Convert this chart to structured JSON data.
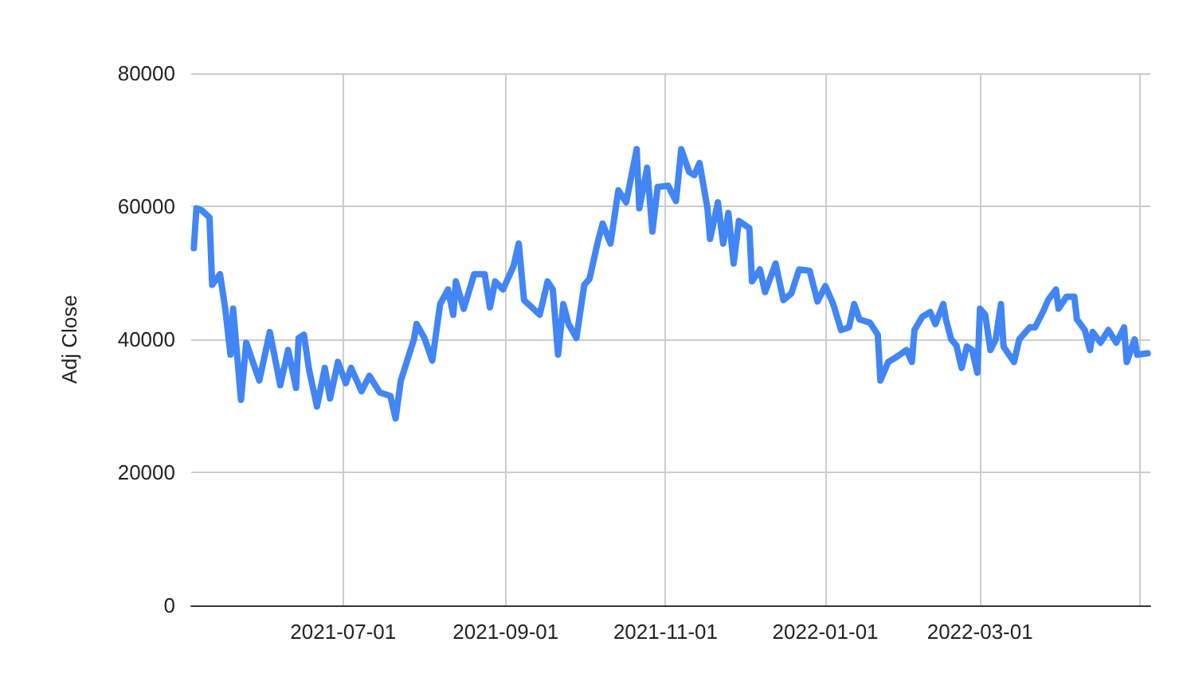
{
  "chart_data": {
    "type": "line",
    "ylabel": "Adj Close",
    "xlim": [
      "2021-05-04",
      "2022-05-05"
    ],
    "ylim": [
      0,
      80000
    ],
    "yticks": [
      0,
      20000,
      40000,
      60000,
      80000
    ],
    "xticks": [
      "2021-07-01",
      "2021-09-01",
      "2021-11-01",
      "2022-01-01",
      "2022-03-01",
      {
        "value": "2022-05-01",
        "label": null
      }
    ],
    "grid": true,
    "marker": "none",
    "line_style": "solid",
    "series": [
      {
        "color": "#4285f4",
        "x": [
          "2021-05-05",
          "2021-05-06",
          "2021-05-08",
          "2021-05-11",
          "2021-05-12",
          "2021-05-15",
          "2021-05-17",
          "2021-05-19",
          "2021-05-20",
          "2021-05-23",
          "2021-05-25",
          "2021-05-30",
          "2021-06-03",
          "2021-06-07",
          "2021-06-10",
          "2021-06-13",
          "2021-06-14",
          "2021-06-16",
          "2021-06-18",
          "2021-06-21",
          "2021-06-24",
          "2021-06-26",
          "2021-06-29",
          "2021-07-02",
          "2021-07-04",
          "2021-07-08",
          "2021-07-11",
          "2021-07-15",
          "2021-07-19",
          "2021-07-21",
          "2021-07-23",
          "2021-07-28",
          "2021-07-29",
          "2021-08-01",
          "2021-08-04",
          "2021-08-07",
          "2021-08-10",
          "2021-08-12",
          "2021-08-13",
          "2021-08-16",
          "2021-08-20",
          "2021-08-24",
          "2021-08-26",
          "2021-08-28",
          "2021-08-31",
          "2021-09-04",
          "2021-09-06",
          "2021-09-08",
          "2021-09-11",
          "2021-09-14",
          "2021-09-17",
          "2021-09-19",
          "2021-09-21",
          "2021-09-23",
          "2021-09-25",
          "2021-09-28",
          "2021-10-01",
          "2021-10-03",
          "2021-10-06",
          "2021-10-08",
          "2021-10-11",
          "2021-10-14",
          "2021-10-17",
          "2021-10-21",
          "2021-10-22",
          "2021-10-25",
          "2021-10-27",
          "2021-10-29",
          "2021-11-02",
          "2021-11-05",
          "2021-11-07",
          "2021-11-10",
          "2021-11-12",
          "2021-11-14",
          "2021-11-17",
          "2021-11-18",
          "2021-11-21",
          "2021-11-23",
          "2021-11-25",
          "2021-11-27",
          "2021-11-29",
          "2021-12-03",
          "2021-12-04",
          "2021-12-07",
          "2021-12-09",
          "2021-12-13",
          "2021-12-16",
          "2021-12-19",
          "2021-12-22",
          "2021-12-26",
          "2021-12-29",
          "2022-01-01",
          "2022-01-04",
          "2022-01-07",
          "2022-01-10",
          "2022-01-12",
          "2022-01-14",
          "2022-01-18",
          "2022-01-21",
          "2022-01-22",
          "2022-01-25",
          "2022-01-28",
          "2022-02-01",
          "2022-02-03",
          "2022-02-04",
          "2022-02-07",
          "2022-02-10",
          "2022-02-12",
          "2022-02-15",
          "2022-02-16",
          "2022-02-18",
          "2022-02-20",
          "2022-02-22",
          "2022-02-24",
          "2022-02-26",
          "2022-02-28",
          "2022-03-01",
          "2022-03-03",
          "2022-03-05",
          "2022-03-07",
          "2022-03-09",
          "2022-03-10",
          "2022-03-14",
          "2022-03-16",
          "2022-03-20",
          "2022-03-22",
          "2022-03-25",
          "2022-03-27",
          "2022-03-30",
          "2022-03-31",
          "2022-04-03",
          "2022-04-06",
          "2022-04-07",
          "2022-04-10",
          "2022-04-12",
          "2022-04-13",
          "2022-04-16",
          "2022-04-19",
          "2022-04-22",
          "2022-04-25",
          "2022-04-26",
          "2022-04-29",
          "2022-04-30",
          "2022-05-04"
        ],
        "values": [
          53700,
          59700,
          59400,
          58300,
          48200,
          49800,
          44600,
          37700,
          44600,
          30900,
          39500,
          33800,
          41100,
          33100,
          38400,
          32700,
          40200,
          40700,
          35400,
          29900,
          35700,
          31100,
          36600,
          33400,
          35700,
          32200,
          34500,
          32000,
          31500,
          28100,
          33800,
          40000,
          42300,
          40200,
          36800,
          45300,
          47500,
          43700,
          48700,
          44600,
          49800,
          49800,
          44800,
          48700,
          47500,
          51000,
          54400,
          45900,
          44800,
          43700,
          48700,
          47500,
          37700,
          45300,
          42300,
          40200,
          48200,
          49100,
          54400,
          57400,
          54400,
          62400,
          60600,
          68600,
          59700,
          65800,
          56200,
          62900,
          63100,
          60800,
          68600,
          65200,
          64700,
          66500,
          59700,
          55100,
          60600,
          54400,
          59000,
          51400,
          57800,
          56700,
          48700,
          50500,
          47100,
          51400,
          45900,
          46900,
          50500,
          50300,
          45700,
          48000,
          45300,
          41400,
          41800,
          45300,
          43000,
          42500,
          40700,
          33800,
          36600,
          37300,
          38400,
          36600,
          41400,
          43400,
          44100,
          42300,
          45300,
          43000,
          40000,
          39100,
          35700,
          38900,
          38400,
          35000,
          44600,
          43700,
          38400,
          40000,
          45300,
          38900,
          36600,
          40000,
          41800,
          41800,
          44100,
          45900,
          47500,
          44600,
          46400,
          46400,
          43000,
          41400,
          38400,
          41100,
          39500,
          41400,
          39500,
          41800,
          36600,
          40000,
          37700,
          37900
        ]
      }
    ]
  }
}
